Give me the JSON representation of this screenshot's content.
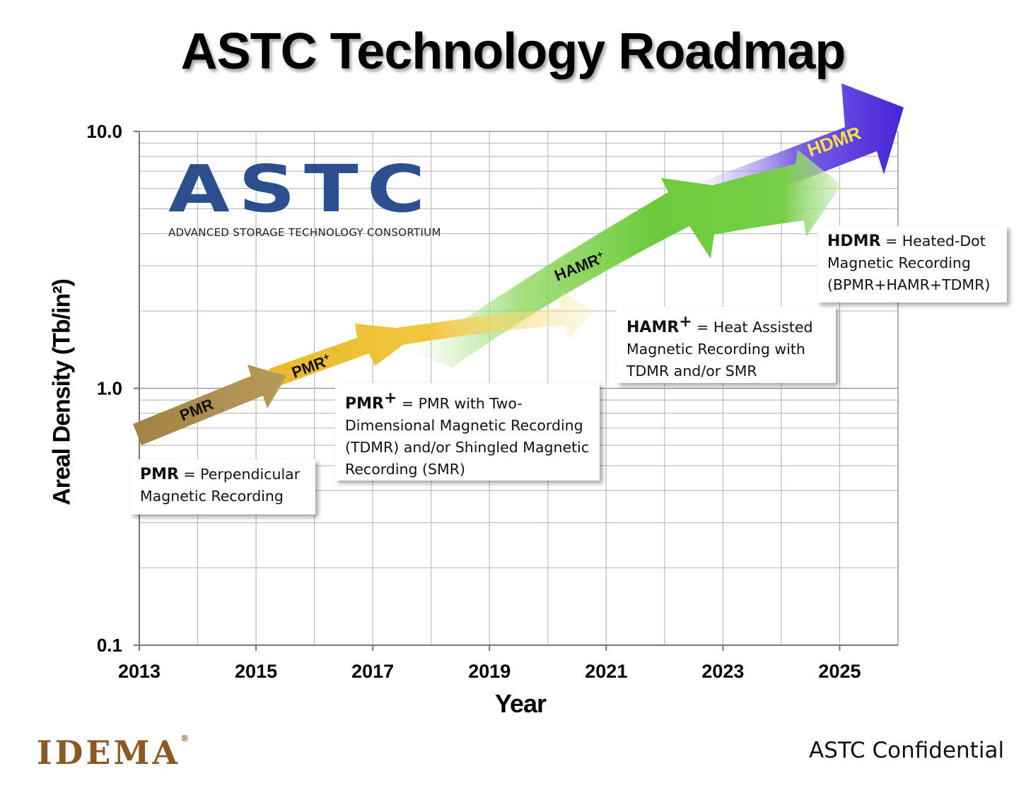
{
  "title": "ASTC Technology Roadmap",
  "logo": {
    "name": "ASTC",
    "subtitle": "ADVANCED STORAGE TECHNOLOGY CONSORTIUM",
    "color": "#2c4f8e"
  },
  "footer": {
    "brand": "IDEMA",
    "brand_mark": "®",
    "brand_color": "#8a5a22",
    "confidential": "ASTC Confidential"
  },
  "notes": {
    "pmr": {
      "term": "PMR",
      "definition": " = Perpendicular Magnetic Recording"
    },
    "pmr_plus": {
      "term": "PMR",
      "sup": "+",
      "definition": " = PMR with Two-Dimensional Magnetic Recording (TDMR) and/or Shingled Magnetic Recording (SMR)"
    },
    "hamr_plus": {
      "term": "HAMR",
      "sup": "+",
      "definition": " = Heat Assisted Magnetic Recording with TDMR and/or SMR"
    },
    "hdmr": {
      "term": "HDMR",
      "definition": " = Heated-Dot Magnetic Recording (BPMR+HAMR+TDMR)"
    }
  },
  "chart_data": {
    "type": "line",
    "xlabel": "Year",
    "ylabel": "Areal Density (Tb/in²)",
    "x_ticks": [
      "2013",
      "2015",
      "2017",
      "2019",
      "2021",
      "2023",
      "2025"
    ],
    "y_ticks": [
      "0.1",
      "1.0",
      "10.0"
    ],
    "xlim": [
      2013,
      2026
    ],
    "ylim": [
      0.1,
      10.0
    ],
    "y_scale": "log",
    "grid": true,
    "series": [
      {
        "name": "PMR",
        "color": "#a8894a",
        "points": [
          [
            2013,
            0.6
          ],
          [
            2015.3,
            1.0
          ]
        ]
      },
      {
        "name": "PMR",
        "sup": "+",
        "color": "#ecc030",
        "points": [
          [
            2015.3,
            1.0
          ],
          [
            2017,
            1.5
          ],
          [
            2020.6,
            1.9
          ]
        ]
      },
      {
        "name": "HAMR",
        "sup": "+",
        "color": "#6fcb3c",
        "points": [
          [
            2017.5,
            1.0
          ],
          [
            2020,
            2.4
          ],
          [
            2022.6,
            4.0
          ],
          [
            2024.6,
            6.3
          ]
        ]
      },
      {
        "name": "HDMR",
        "color": "#4b2ad8",
        "label_color": "#f3e04a",
        "points": [
          [
            2021.5,
            4.5
          ],
          [
            2023.5,
            6.5
          ],
          [
            2026,
            10.5
          ]
        ]
      }
    ]
  }
}
